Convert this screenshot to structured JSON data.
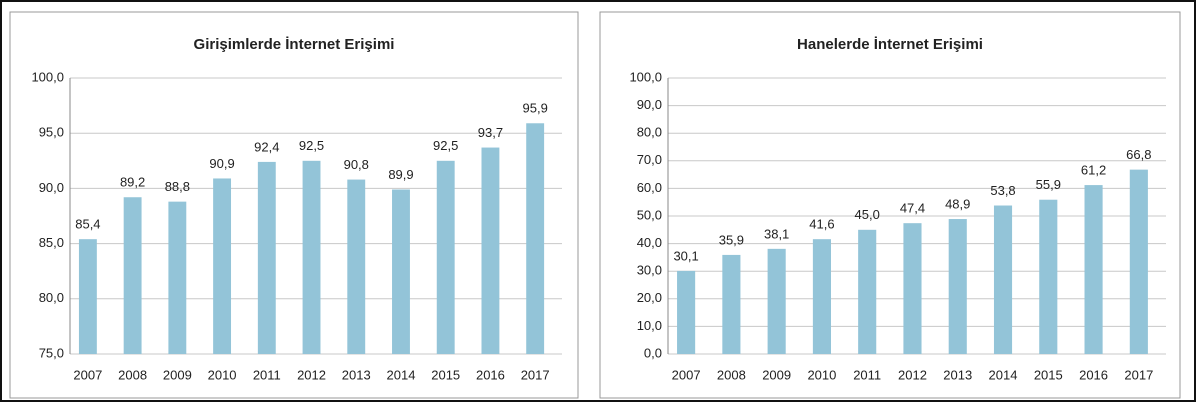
{
  "chart_data": [
    {
      "type": "bar",
      "title": "Girişimlerde İnternet Erişimi",
      "categories": [
        "2007",
        "2008",
        "2009",
        "2010",
        "2011",
        "2012",
        "2013",
        "2014",
        "2015",
        "2016",
        "2017"
      ],
      "values": [
        85.4,
        89.2,
        88.8,
        90.9,
        92.4,
        92.5,
        90.8,
        89.9,
        92.5,
        93.7,
        95.9
      ],
      "value_labels": [
        "85,4",
        "89,2",
        "88,8",
        "90,9",
        "92,4",
        "92,5",
        "90,8",
        "89,9",
        "92,5",
        "93,7",
        "95,9"
      ],
      "color": "#93c4d8",
      "grid": true,
      "ylim": [
        75,
        100
      ],
      "yticks": [
        {
          "value": 75,
          "label": "75,0"
        },
        {
          "value": 80,
          "label": "80,0"
        },
        {
          "value": 85,
          "label": "85,0"
        },
        {
          "value": 90,
          "label": "90,0"
        },
        {
          "value": 95,
          "label": "95,0"
        },
        {
          "value": 100,
          "label": "100,0"
        }
      ]
    },
    {
      "type": "bar",
      "title": "Hanelerde İnternet Erişimi",
      "categories": [
        "2007",
        "2008",
        "2009",
        "2010",
        "2011",
        "2012",
        "2013",
        "2014",
        "2015",
        "2016",
        "2017"
      ],
      "values": [
        30.1,
        35.9,
        38.1,
        41.6,
        45.0,
        47.4,
        48.9,
        53.8,
        55.9,
        61.2,
        66.8
      ],
      "value_labels": [
        "30,1",
        "35,9",
        "38,1",
        "41,6",
        "45,0",
        "47,4",
        "48,9",
        "53,8",
        "55,9",
        "61,2",
        "66,8"
      ],
      "color": "#93c4d8",
      "grid": true,
      "ylim": [
        0,
        100
      ],
      "yticks": [
        {
          "value": 0,
          "label": "0,0"
        },
        {
          "value": 10,
          "label": "10,0"
        },
        {
          "value": 20,
          "label": "20,0"
        },
        {
          "value": 30,
          "label": "30,0"
        },
        {
          "value": 40,
          "label": "40,0"
        },
        {
          "value": 50,
          "label": "50,0"
        },
        {
          "value": 60,
          "label": "60,0"
        },
        {
          "value": 70,
          "label": "70,0"
        },
        {
          "value": 80,
          "label": "80,0"
        },
        {
          "value": 90,
          "label": "90,0"
        },
        {
          "value": 100,
          "label": "100,0"
        }
      ]
    }
  ]
}
